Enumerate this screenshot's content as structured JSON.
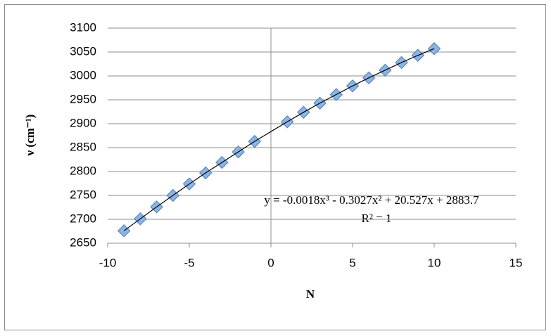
{
  "chart_data": {
    "type": "scatter",
    "x_label": "N",
    "y_label": "ν (cm⁻¹)",
    "x": [
      -9,
      -8,
      -7,
      -6,
      -5,
      -4,
      -3,
      -2,
      -1,
      1,
      2,
      3,
      4,
      5,
      6,
      7,
      8,
      9,
      10
    ],
    "values": [
      2676,
      2701,
      2726,
      2750,
      2774,
      2797,
      2819,
      2841,
      2863,
      2904,
      2924,
      2943,
      2961,
      2979,
      2996,
      3012,
      3028,
      3043,
      3057
    ],
    "color": "#8db3e2",
    "trendline": true,
    "annotations": [
      "y = -0.0018x³ - 0.3027x² + 20.527x + 2883.7",
      "R² = 1"
    ],
    "xlim": [
      -10,
      15
    ],
    "xticks": [
      -10,
      -5,
      0,
      5,
      10,
      15
    ],
    "ylim": [
      2650,
      3100
    ],
    "yticks": [
      2650,
      2700,
      2750,
      2800,
      2850,
      2900,
      2950,
      3000,
      3050,
      3100
    ],
    "grid": true
  }
}
